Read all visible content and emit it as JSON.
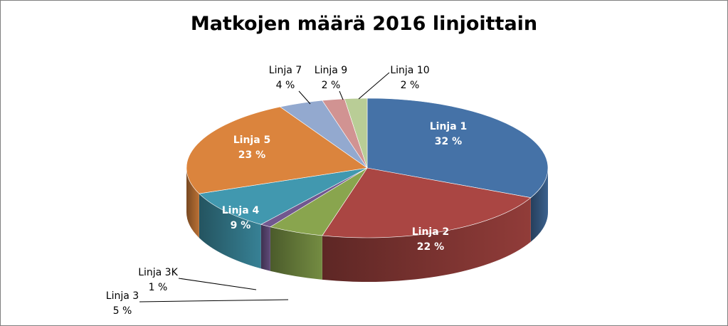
{
  "chart_data": {
    "type": "pie",
    "title": "Matkojen määrä 2016 linjoittain",
    "slices": [
      {
        "name": "Linja 1",
        "value": 32,
        "label": "32 %",
        "color": "#4572A7"
      },
      {
        "name": "Linja 2",
        "value": 22,
        "label": "22 %",
        "color": "#AA4643"
      },
      {
        "name": "Linja 3",
        "value": 5,
        "label": "5 %",
        "color": "#89A54E"
      },
      {
        "name": "Linja 3K",
        "value": 1,
        "label": "1 %",
        "color": "#71588F"
      },
      {
        "name": "Linja 4",
        "value": 9,
        "label": "9 %",
        "color": "#4198AF"
      },
      {
        "name": "Linja 5",
        "value": 23,
        "label": "23 %",
        "color": "#DB843D"
      },
      {
        "name": "Linja 7",
        "value": 4,
        "label": "4 %",
        "color": "#93A9CF"
      },
      {
        "name": "Linja 9",
        "value": 2,
        "label": "2 %",
        "color": "#D19392"
      },
      {
        "name": "Linja 10",
        "value": 2,
        "label": "2 %",
        "color": "#B9CD96"
      }
    ],
    "legend": "none",
    "style": "3d"
  }
}
